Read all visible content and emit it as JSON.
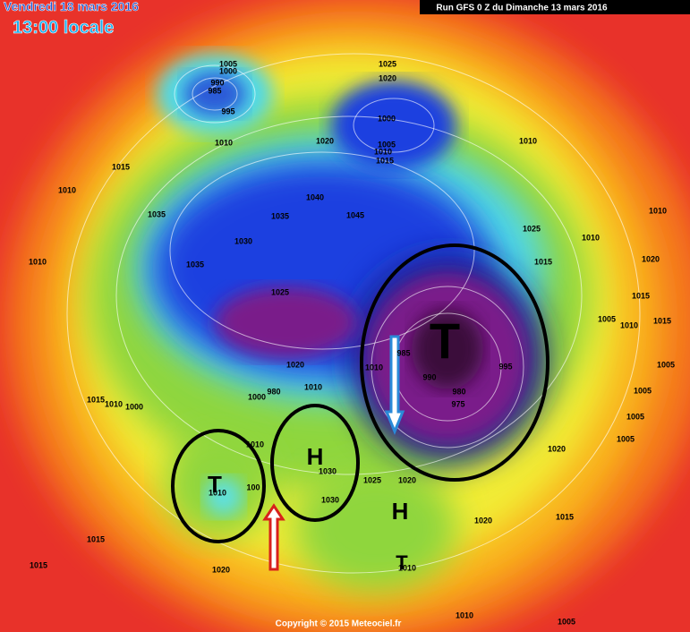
{
  "header": {
    "title": "Vendredi 18 mars 2016",
    "time": "13:00 locale",
    "run": "Run GFS 0 Z du Dimanche 13 mars 2016"
  },
  "footer": {
    "copyright": "Copyright © 2015 Meteociel.fr"
  },
  "isobar_labels": [
    1005,
    1000,
    990,
    985,
    995,
    1010,
    1025,
    1020,
    1000,
    1005,
    1010,
    1015,
    1020,
    1010,
    1015,
    1010,
    1035,
    1040,
    1035,
    1045,
    1030,
    1025,
    1010,
    1010,
    1035,
    1015,
    1020,
    1010,
    1015,
    1025,
    1005,
    1010,
    1015,
    985,
    990,
    995,
    1010,
    1020,
    1010,
    980,
    1000,
    980,
    975,
    1005,
    1005,
    1015,
    1010,
    1005,
    1000,
    1020,
    1005,
    1010,
    1030,
    1030,
    1010,
    100,
    1025,
    1020,
    1020,
    1015,
    1015,
    1015,
    1020,
    1010,
    1010,
    1005
  ],
  "systems": [
    "T",
    "H",
    "T",
    "H",
    "T"
  ]
}
